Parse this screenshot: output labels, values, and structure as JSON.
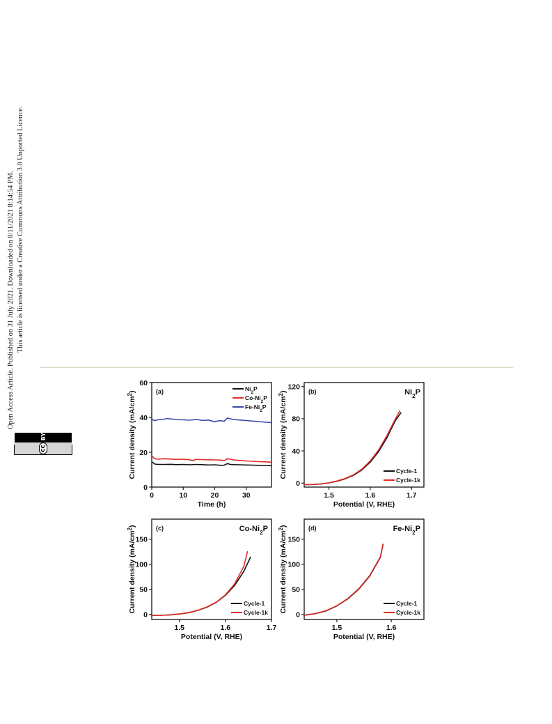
{
  "sidebar": {
    "line1": "Open Access Article. Published on 31 July 2021. Downloaded on 8/11/2021 8:14:54 PM.",
    "line2": "This article is licensed under a Creative Commons Attribution 3.0 Unported Licence.",
    "cc_logo": "cc",
    "by_label": "BY"
  },
  "colors": {
    "black": "#111111",
    "red": "#e02a24",
    "blue": "#3a48b0"
  },
  "chart_data": [
    {
      "panel": "(a)",
      "type": "line",
      "title": "",
      "xlabel": "Time (h)",
      "ylabel": "Current density (mA/cm2)",
      "xlim": [
        0,
        38
      ],
      "ylim": [
        0,
        60
      ],
      "xticks": [
        0,
        10,
        20,
        30
      ],
      "yticks": [
        0,
        20,
        40,
        60
      ],
      "legend_position": "top-right",
      "series": [
        {
          "name": "Ni2P",
          "color": "#111111",
          "x": [
            0,
            0.6,
            1,
            2,
            4,
            6,
            8,
            10,
            12,
            14,
            16,
            18,
            20,
            22,
            23,
            24,
            25,
            26,
            28,
            30,
            32,
            34,
            36,
            38
          ],
          "y": [
            14.5,
            13.8,
            13.2,
            13,
            13,
            13.1,
            12.9,
            13,
            12.8,
            13,
            12.9,
            12.7,
            12.8,
            12.5,
            12.6,
            13.5,
            13,
            12.9,
            12.8,
            12.7,
            12.6,
            12.5,
            12.4,
            12.3
          ]
        },
        {
          "name": "Co-Ni2P",
          "color": "#e02a24",
          "x": [
            0,
            0.6,
            1,
            2,
            4,
            6,
            8,
            10,
            12,
            13,
            14,
            16,
            18,
            20,
            22,
            23,
            24,
            25,
            26,
            28,
            30,
            32,
            34,
            36,
            38
          ],
          "y": [
            18,
            16.8,
            16.3,
            16,
            16.3,
            16.1,
            15.9,
            16,
            15.7,
            15.2,
            15.9,
            15.8,
            15.7,
            15.6,
            15.5,
            15.2,
            16.3,
            16,
            15.6,
            15.3,
            15,
            14.8,
            14.6,
            14.5,
            14.3
          ]
        },
        {
          "name": "Fe-Ni2P",
          "color": "#3a48b0",
          "x": [
            0,
            0.8,
            2,
            4,
            5,
            6,
            8,
            10,
            12,
            14,
            15,
            16,
            18,
            20,
            21,
            22,
            23,
            24,
            25,
            26,
            28,
            30,
            32,
            34,
            36,
            38
          ],
          "y": [
            39,
            38.2,
            38.6,
            39,
            39.4,
            39.1,
            38.8,
            38.6,
            38.4,
            38.8,
            38.6,
            38.3,
            38.5,
            37.5,
            38,
            38.1,
            37.8,
            39.6,
            39.2,
            38.8,
            38.5,
            38.2,
            37.9,
            37.6,
            37.3,
            37
          ]
        }
      ]
    },
    {
      "panel": "(b)",
      "type": "line",
      "title": "Ni2P",
      "xlabel": "Potential (V, RHE)",
      "ylabel": "Current density (mA/cm2)",
      "xlim": [
        1.44,
        1.73
      ],
      "ylim": [
        -5,
        125
      ],
      "xticks": [
        1.5,
        1.6,
        1.7
      ],
      "yticks": [
        0,
        40,
        80,
        120
      ],
      "legend_position": "bottom-right",
      "series": [
        {
          "name": "Cycle-1",
          "color": "#111111",
          "x": [
            1.44,
            1.46,
            1.48,
            1.5,
            1.52,
            1.54,
            1.56,
            1.58,
            1.6,
            1.62,
            1.64,
            1.66,
            1.675
          ],
          "y": [
            -2,
            -1.8,
            -1.2,
            0.2,
            2.3,
            5.4,
            9.8,
            16.4,
            26,
            39,
            56,
            77,
            88
          ]
        },
        {
          "name": "Cycle-1k",
          "color": "#e02a24",
          "x": [
            1.44,
            1.46,
            1.48,
            1.5,
            1.52,
            1.54,
            1.56,
            1.58,
            1.6,
            1.62,
            1.64,
            1.66,
            1.672
          ],
          "y": [
            -2,
            -1.8,
            -1.1,
            0.3,
            2.6,
            5.8,
            10.4,
            17.4,
            27.5,
            41,
            58.5,
            79,
            90
          ]
        }
      ]
    },
    {
      "panel": "(c)",
      "type": "line",
      "title": "Co-Ni2P",
      "xlabel": "Potential (V, RHE)",
      "ylabel": "Current density (mA/cm2)",
      "xlim": [
        1.44,
        1.7
      ],
      "ylim": [
        -10,
        190
      ],
      "xticks": [
        1.5,
        1.6,
        1.7
      ],
      "yticks": [
        0,
        50,
        100,
        150
      ],
      "legend_position": "bottom-right",
      "series": [
        {
          "name": "Cycle-1",
          "color": "#111111",
          "x": [
            1.44,
            1.46,
            1.48,
            1.5,
            1.52,
            1.54,
            1.56,
            1.58,
            1.6,
            1.62,
            1.64,
            1.655
          ],
          "y": [
            -2,
            -1.6,
            -0.8,
            0.8,
            3.5,
            8,
            14.5,
            24,
            38,
            58,
            86,
            115
          ]
        },
        {
          "name": "Cycle-1k",
          "color": "#e02a24",
          "x": [
            1.44,
            1.46,
            1.48,
            1.5,
            1.52,
            1.54,
            1.56,
            1.58,
            1.6,
            1.62,
            1.64,
            1.648
          ],
          "y": [
            -2,
            -1.6,
            -0.7,
            1,
            3.8,
            8.4,
            15,
            24.5,
            39,
            61,
            96,
            126
          ]
        }
      ]
    },
    {
      "panel": "(d)",
      "type": "line",
      "title": "Fe-Ni2P",
      "xlabel": "Potential (V, RHE)",
      "ylabel": "Current density (mA/cm2)",
      "xlim": [
        1.44,
        1.66
      ],
      "ylim": [
        -10,
        190
      ],
      "xticks": [
        1.5,
        1.6
      ],
      "yticks": [
        0,
        50,
        100,
        150
      ],
      "legend_position": "bottom-right",
      "series": [
        {
          "name": "Cycle-1",
          "color": "#111111",
          "x": [
            1.44,
            1.46,
            1.48,
            1.5,
            1.52,
            1.54,
            1.56,
            1.58,
            1.585
          ],
          "y": [
            -1.5,
            1.5,
            7,
            17,
            31,
            50,
            76,
            114,
            140
          ]
        },
        {
          "name": "Cycle-1k",
          "color": "#e02a24",
          "x": [
            1.44,
            1.46,
            1.48,
            1.5,
            1.52,
            1.54,
            1.56,
            1.58,
            1.585
          ],
          "y": [
            -1.5,
            1.7,
            7.3,
            17.4,
            31.6,
            51,
            77,
            115,
            141
          ]
        }
      ]
    }
  ]
}
